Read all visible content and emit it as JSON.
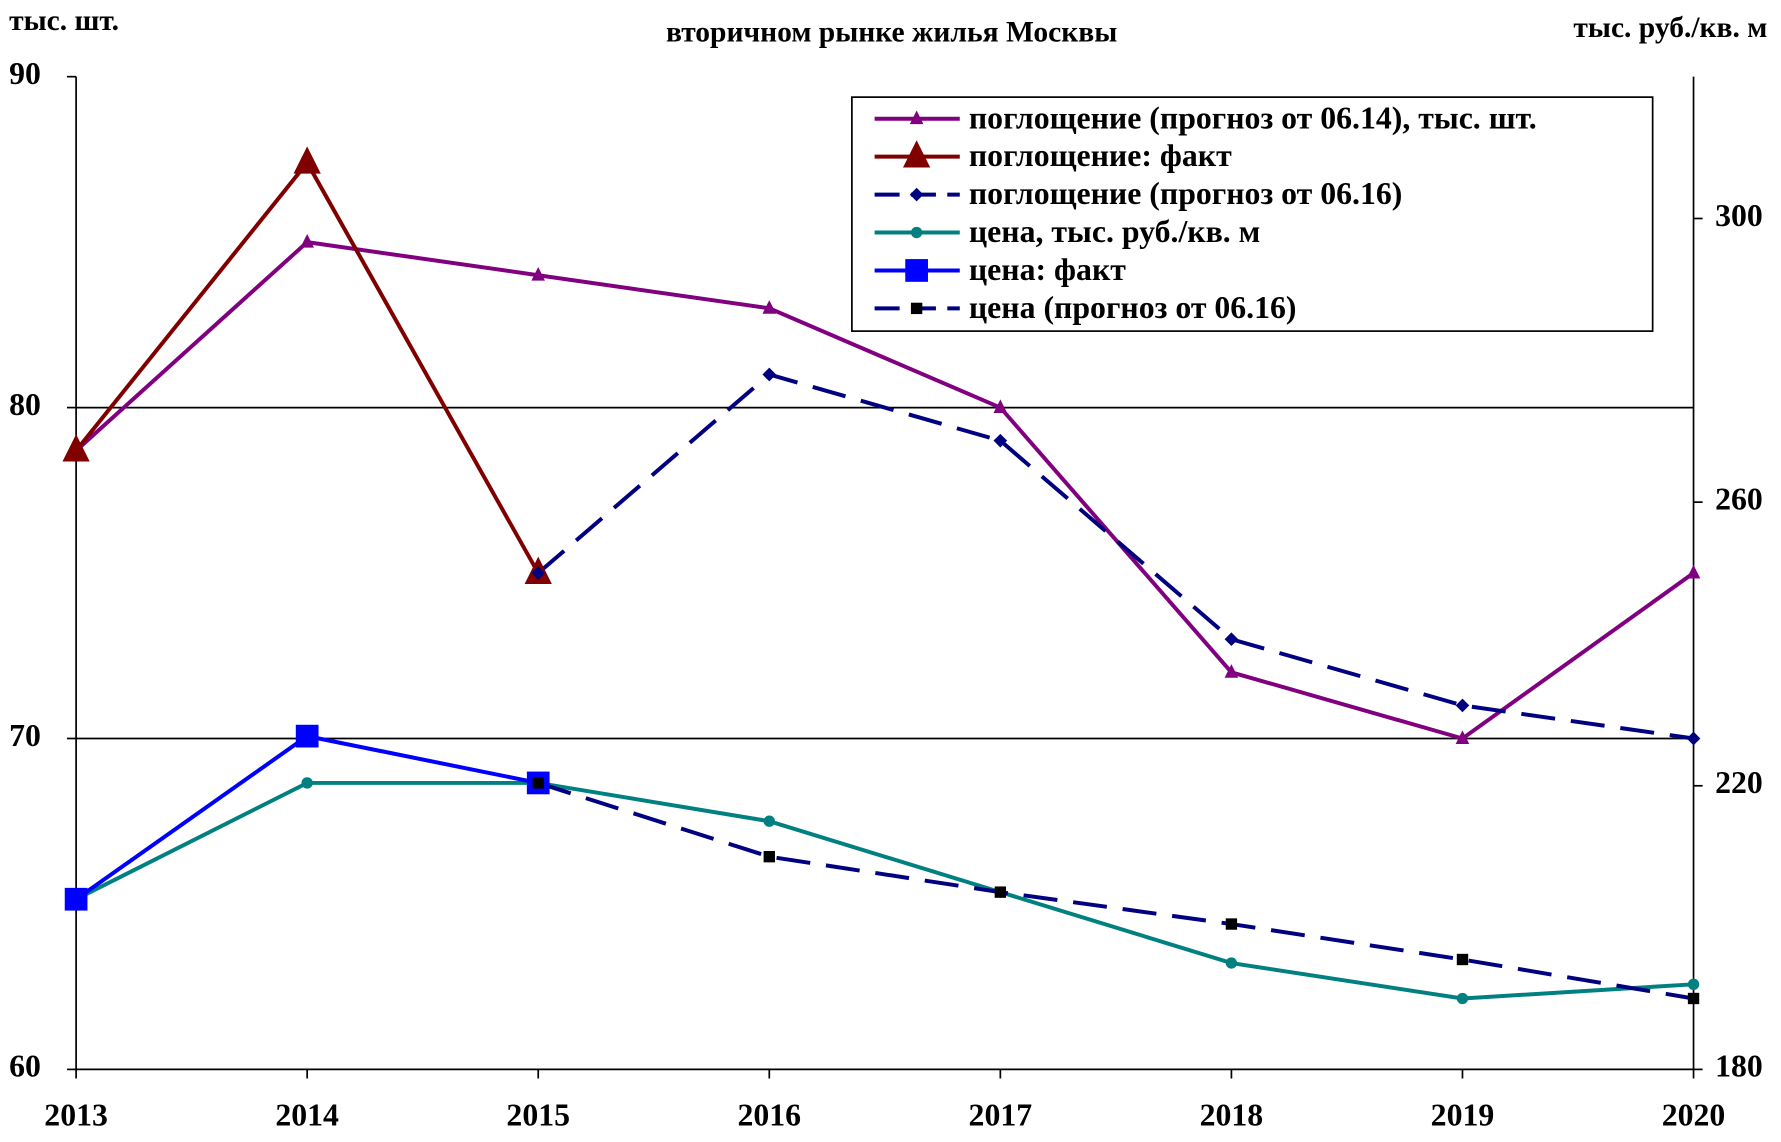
{
  "chart_data": {
    "type": "line",
    "title": "вторичном рынке жилья Москвы",
    "y_label": "тыс. шт.",
    "y2_label": "тыс. руб./кв. м",
    "x": [
      2013,
      2014,
      2015,
      2016,
      2017,
      2018,
      2019,
      2020
    ],
    "xlim": [
      2013,
      2020
    ],
    "ylim": [
      60,
      90
    ],
    "yticks": [
      60,
      70,
      80,
      90
    ],
    "y2lim": [
      180,
      320
    ],
    "y2ticks": [
      180,
      220,
      260,
      300
    ],
    "grid": true,
    "legend": "top-right",
    "series": [
      {
        "name": "поглощение (прогноз от 06.14), тыс. шт.",
        "color": "#800080",
        "marker": "triangle",
        "marker_size": 6,
        "dashed": false,
        "values": [
          78.7,
          85,
          84,
          83,
          80,
          72,
          70,
          75
        ]
      },
      {
        "name": "поглощение: факт",
        "color": "#800000",
        "marker": "triangle",
        "marker_size": 12,
        "dashed": false,
        "values": [
          78.7,
          87.4,
          75,
          null,
          null,
          null,
          null,
          null
        ]
      },
      {
        "name": "поглощение (прогноз от 06.16)",
        "color": "#000080",
        "marker": "diamond",
        "marker_size": 6,
        "dashed": true,
        "values": [
          null,
          null,
          75,
          81,
          79,
          73,
          71,
          70
        ]
      },
      {
        "name": "цена, тыс. руб./кв. м",
        "color": "#008080",
        "marker": "circle",
        "marker_size": 5,
        "dashed": false,
        "axis": "y2",
        "values": [
          204,
          220.4,
          220.4,
          215,
          205,
          195,
          190,
          192
        ]
      },
      {
        "name": "цена: факт",
        "color": "#0000ff",
        "marker": "square",
        "marker_size": 10,
        "dashed": false,
        "axis": "y2",
        "values": [
          204,
          227,
          220.4,
          null,
          null,
          null,
          null,
          null
        ]
      },
      {
        "name": "цена (прогноз от 06.16)",
        "color": "#000080",
        "marker_color": "#000000",
        "marker": "square",
        "marker_size": 5,
        "dashed": true,
        "axis": "y2",
        "values": [
          null,
          null,
          220.4,
          210,
          205,
          200.5,
          195.5,
          190
        ]
      }
    ]
  }
}
